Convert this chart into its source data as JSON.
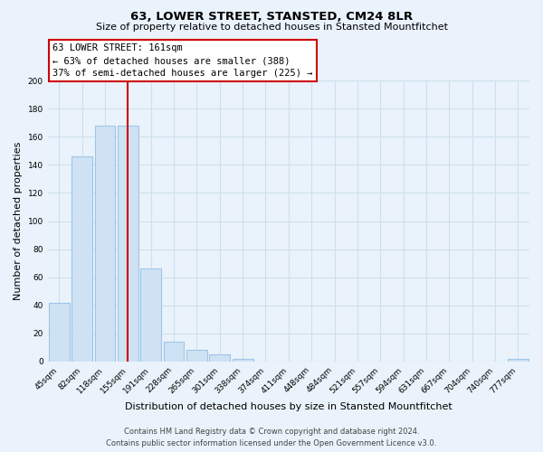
{
  "title": "63, LOWER STREET, STANSTED, CM24 8LR",
  "subtitle": "Size of property relative to detached houses in Stansted Mountfitchet",
  "bar_labels": [
    "45sqm",
    "82sqm",
    "118sqm",
    "155sqm",
    "191sqm",
    "228sqm",
    "265sqm",
    "301sqm",
    "338sqm",
    "374sqm",
    "411sqm",
    "448sqm",
    "484sqm",
    "521sqm",
    "557sqm",
    "594sqm",
    "631sqm",
    "667sqm",
    "704sqm",
    "740sqm",
    "777sqm"
  ],
  "bar_values": [
    42,
    146,
    168,
    168,
    66,
    14,
    8,
    5,
    2,
    0,
    0,
    0,
    0,
    0,
    0,
    0,
    0,
    0,
    0,
    0,
    2
  ],
  "bar_color": "#cfe2f3",
  "bar_edge_color": "#9fc5e8",
  "vline_x": 3.0,
  "vline_color": "#cc0000",
  "ylabel": "Number of detached properties",
  "xlabel": "Distribution of detached houses by size in Stansted Mountfitchet",
  "ylim": [
    0,
    200
  ],
  "yticks": [
    0,
    20,
    40,
    60,
    80,
    100,
    120,
    140,
    160,
    180,
    200
  ],
  "annotation_title": "63 LOWER STREET: 161sqm",
  "annotation_line1": "← 63% of detached houses are smaller (388)",
  "annotation_line2": "37% of semi-detached houses are larger (225) →",
  "annotation_box_color": "#ffffff",
  "annotation_box_edge": "#cc0000",
  "footer_line1": "Contains HM Land Registry data © Crown copyright and database right 2024.",
  "footer_line2": "Contains public sector information licensed under the Open Government Licence v3.0.",
  "bg_color": "#eaf3fb",
  "grid_color": "#cde0ef"
}
